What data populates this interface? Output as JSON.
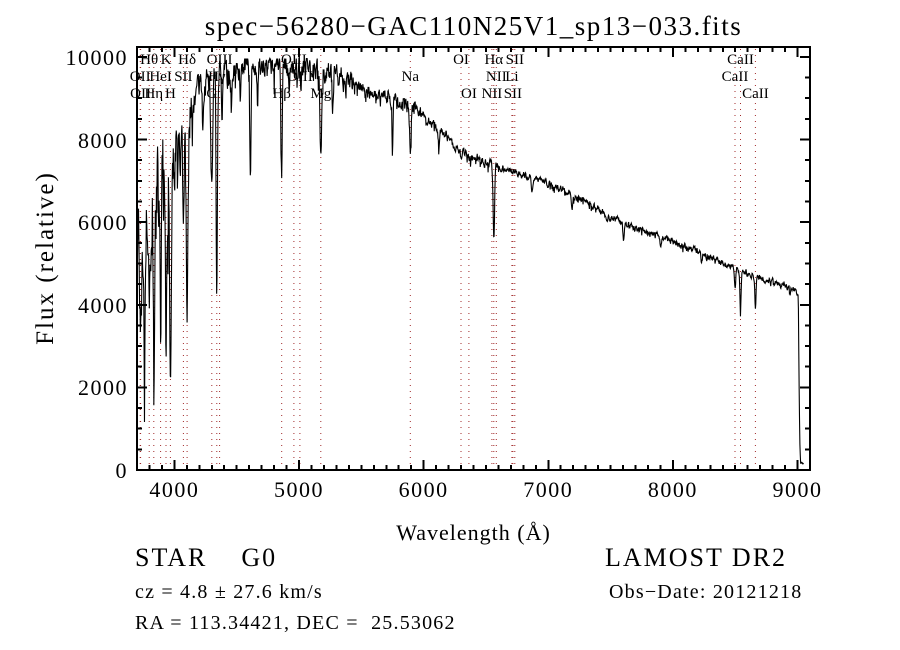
{
  "chart_data": {
    "type": "line",
    "title": "spec−56280−GAC110N25V1_sp13−033.fits",
    "xlabel": "Wavelength (Å)",
    "ylabel": "Flux (relative)",
    "xlim": [
      3700,
      9100
    ],
    "ylim": [
      0,
      10240
    ],
    "x_ticks": [
      4000,
      5000,
      6000,
      7000,
      8000,
      9000
    ],
    "y_ticks": [
      0,
      2000,
      4000,
      6000,
      8000,
      10000
    ],
    "x_minor_step": 100,
    "y_minor_step": 500,
    "grid": false,
    "legend": "none",
    "line_color": "#000000",
    "marker_line_color": "#a02828",
    "frame_color": "#000000",
    "spectral_lines": [
      {
        "label": "Hθ",
        "wavelength": 3798,
        "row": 1
      },
      {
        "label": "K",
        "wavelength": 3933,
        "row": 1
      },
      {
        "label": "Hδ",
        "wavelength": 4102,
        "row": 1
      },
      {
        "label": "OIII",
        "wavelength": 4363,
        "row": 1
      },
      {
        "label": "OIII",
        "wavelength": 4959,
        "row": 1
      },
      {
        "label": "OI",
        "wavelength": 6300,
        "row": 1
      },
      {
        "label": "Hα",
        "wavelength": 6563,
        "row": 1
      },
      {
        "label": "SII",
        "wavelength": 6731,
        "row": 1
      },
      {
        "label": "CaII",
        "wavelength": 8542,
        "row": 1
      },
      {
        "label": "OII",
        "wavelength": 3726,
        "row": 2
      },
      {
        "label": "HeI",
        "wavelength": 3889,
        "row": 2
      },
      {
        "label": "SII",
        "wavelength": 4072,
        "row": 2
      },
      {
        "label": "Hγ",
        "wavelength": 4340,
        "row": 2
      },
      {
        "label": "OIII",
        "wavelength": 5007,
        "row": 2
      },
      {
        "label": "Na",
        "wavelength": 5893,
        "row": 2
      },
      {
        "label": "NII",
        "wavelength": 6583,
        "row": 2
      },
      {
        "label": "Li",
        "wavelength": 6708,
        "row": 2
      },
      {
        "label": "CaII",
        "wavelength": 8498,
        "row": 2
      },
      {
        "label": "OII",
        "wavelength": 3729,
        "row": 3
      },
      {
        "label": "Hη",
        "wavelength": 3835,
        "row": 3
      },
      {
        "label": "H",
        "wavelength": 3968,
        "row": 3
      },
      {
        "label": "G",
        "wavelength": 4300,
        "row": 3
      },
      {
        "label": "Hβ",
        "wavelength": 4861,
        "row": 3
      },
      {
        "label": "Mg",
        "wavelength": 5175,
        "row": 3
      },
      {
        "label": "OI",
        "wavelength": 6363,
        "row": 3
      },
      {
        "label": "NII",
        "wavelength": 6548,
        "row": 3
      },
      {
        "label": "SII",
        "wavelength": 6716,
        "row": 3
      },
      {
        "label": "CaII",
        "wavelength": 8662,
        "row": 3
      }
    ],
    "spectrum": {
      "seed": 77,
      "sample_step": 3,
      "wavelength_start": 3700,
      "wavelength_end": 9050,
      "flux_max_clip": 9960,
      "flux_min_clip": 60,
      "envelope": [
        [
          3700,
          5000
        ],
        [
          3740,
          5400
        ],
        [
          3780,
          6100
        ],
        [
          3820,
          6500
        ],
        [
          3860,
          6900
        ],
        [
          3900,
          7150
        ],
        [
          3950,
          7350
        ],
        [
          4000,
          7600
        ],
        [
          4050,
          7850
        ],
        [
          4100,
          8100
        ],
        [
          4150,
          8850
        ],
        [
          4200,
          9250
        ],
        [
          4300,
          9450
        ],
        [
          4400,
          9600
        ],
        [
          4500,
          9700
        ],
        [
          4650,
          9780
        ],
        [
          4900,
          9800
        ],
        [
          5100,
          9740
        ],
        [
          5250,
          9620
        ],
        [
          5400,
          9380
        ],
        [
          5600,
          9150
        ],
        [
          5800,
          8900
        ],
        [
          5950,
          8700
        ],
        [
          6050,
          8450
        ],
        [
          6150,
          8150
        ],
        [
          6250,
          7850
        ],
        [
          6350,
          7650
        ],
        [
          6500,
          7450
        ],
        [
          6700,
          7250
        ],
        [
          6900,
          7050
        ],
        [
          7100,
          6800
        ],
        [
          7300,
          6500
        ],
        [
          7500,
          6100
        ],
        [
          7700,
          5850
        ],
        [
          7900,
          5650
        ],
        [
          8100,
          5400
        ],
        [
          8300,
          5150
        ],
        [
          8500,
          4880
        ],
        [
          8700,
          4650
        ],
        [
          8900,
          4450
        ],
        [
          9000,
          4320
        ],
        [
          9006,
          4250
        ],
        [
          9012,
          2200
        ],
        [
          9018,
          700
        ],
        [
          9024,
          200
        ],
        [
          9050,
          150
        ]
      ],
      "absorption_lines": [
        [
          3726,
          900,
          5
        ],
        [
          3760,
          2500,
          5
        ],
        [
          3798,
          2300,
          6
        ],
        [
          3835,
          3100,
          6
        ],
        [
          3889,
          3300,
          6
        ],
        [
          3933,
          4700,
          7
        ],
        [
          3968,
          4900,
          7
        ],
        [
          4026,
          1100,
          4
        ],
        [
          4072,
          2100,
          5
        ],
        [
          4102,
          4500,
          7
        ],
        [
          4144,
          900,
          4
        ],
        [
          4227,
          1000,
          4
        ],
        [
          4300,
          2600,
          7
        ],
        [
          4340,
          5200,
          5
        ],
        [
          4383,
          1200,
          4
        ],
        [
          4457,
          800,
          4
        ],
        [
          4531,
          700,
          4
        ],
        [
          4610,
          2950,
          5
        ],
        [
          4668,
          800,
          4
        ],
        [
          4861,
          2850,
          5
        ],
        [
          4920,
          650,
          4
        ],
        [
          5015,
          550,
          4
        ],
        [
          5175,
          1950,
          7
        ],
        [
          5270,
          850,
          5
        ],
        [
          5750,
          1350,
          4
        ],
        [
          5893,
          1050,
          6
        ],
        [
          6122,
          450,
          4
        ],
        [
          6300,
          280,
          4
        ],
        [
          6563,
          1750,
          6
        ],
        [
          6870,
          420,
          6
        ],
        [
          7190,
          280,
          6
        ],
        [
          7605,
          380,
          6
        ],
        [
          7900,
          230,
          5
        ],
        [
          8230,
          280,
          5
        ],
        [
          8498,
          520,
          5
        ],
        [
          8542,
          980,
          5
        ],
        [
          8662,
          780,
          5
        ]
      ],
      "noise_profile": [
        [
          3960,
          1150
        ],
        [
          4150,
          640
        ],
        [
          4460,
          330
        ],
        [
          5460,
          260
        ],
        [
          5990,
          150
        ],
        [
          6590,
          110
        ],
        [
          7600,
          92
        ],
        [
          9004,
          80
        ],
        [
          9100,
          22
        ]
      ],
      "down_spike": {
        "probability": 0.08,
        "factor": 1.7
      }
    }
  },
  "annotations": {
    "class_line": "STAR    G0",
    "survey": "LAMOST DR2",
    "cz": "cz = 4.8 ± 27.6 km/s",
    "obs_date": "Obs−Date: 20121218",
    "coords": "RA = 113.34421, DEC =  25.53062"
  }
}
